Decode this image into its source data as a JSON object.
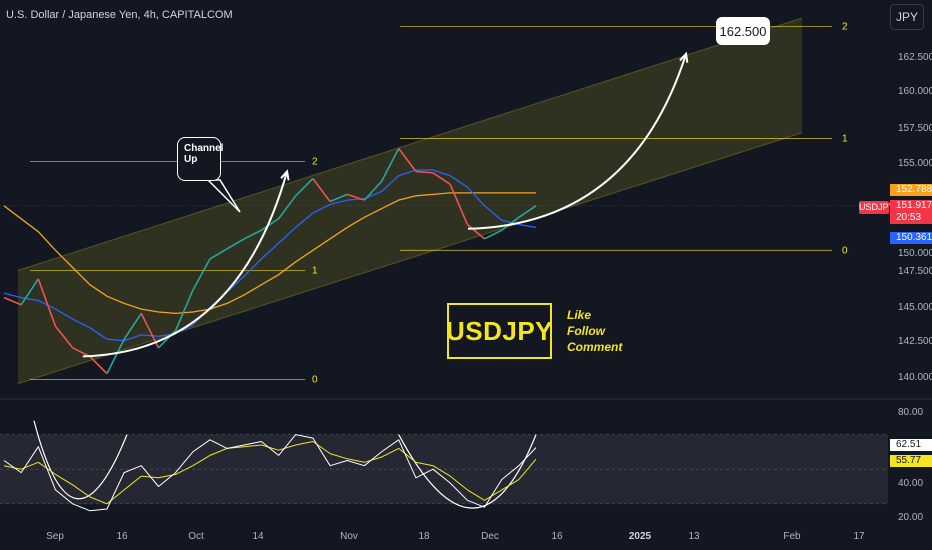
{
  "header": {
    "title": "U.S. Dollar / Japanese Yen, 4h, CAPITALCOM"
  },
  "currency_button": "JPY",
  "price_tags": {
    "ma_orange": "152.788",
    "ticker": "USDJPY",
    "last_price": "151.917",
    "countdown": "20:53",
    "ma_blue": "150.361",
    "rsi_white": "62.51",
    "rsi_yellow": "55.77"
  },
  "annotations": {
    "target": "162.500",
    "callout": "Channel Up",
    "symbol_box": "USDJPY",
    "cta": [
      "Like",
      "Follow",
      "Comment"
    ]
  },
  "colors": {
    "background": "#131722",
    "channel_fill": "#f5e51f",
    "ma_orange": "#f7a21b",
    "ma_blue": "#2962ff",
    "up": "#26a69a",
    "down": "#ef5350",
    "rsi_white": "#ffffff",
    "rsi_yellow": "#f5e51f",
    "last_price": "#f23645"
  },
  "chart_data": [
    {
      "type": "line",
      "title": "U.S. Dollar / Japanese Yen, 4h, CAPITALCOM",
      "y_ticks": [
        "162.500",
        "160.000",
        "157.500",
        "155.000",
        "152.500",
        "150.000",
        "147.500",
        "145.000",
        "142.500",
        "140.000"
      ],
      "x_ticks": [
        "Sep",
        "16",
        "Oct",
        "14",
        "Nov",
        "18",
        "Dec",
        "16",
        "2025",
        "13",
        "Feb",
        "17"
      ],
      "ylim": [
        138.5,
        165.0
      ],
      "series": [
        {
          "name": "",
          "role": "close",
          "x": [
            "Aug 26",
            "Aug 29",
            "Sep 2",
            "Sep 5",
            "Sep 9",
            "Sep 12",
            "Sep 16",
            "Sep 19",
            "Sep 23",
            "Sep 26",
            "Sep 30",
            "Oct 3",
            "Oct 7",
            "Oct 10",
            "Oct 14",
            "Oct 17",
            "Oct 21",
            "Oct 24",
            "Oct 28",
            "Oct 31",
            "Nov 4",
            "Nov 7",
            "Nov 11",
            "Nov 14",
            "Nov 18",
            "Nov 21",
            "Nov 25",
            "Nov 28",
            "Dec 2",
            "Dec 5",
            "Dec 9",
            "Dec 12"
          ],
          "values": [
            145.5,
            145.0,
            146.8,
            143.5,
            142.0,
            141.4,
            140.2,
            142.6,
            144.4,
            142.0,
            143.2,
            146.0,
            148.2,
            148.9,
            149.6,
            150.2,
            151.0,
            152.6,
            153.8,
            152.2,
            152.7,
            152.3,
            153.6,
            155.9,
            154.3,
            154.2,
            153.4,
            150.6,
            149.6,
            150.2,
            151.1,
            151.9
          ]
        },
        {
          "name": "",
          "role": "ma_blue",
          "values": [
            145.8,
            145.5,
            145.3,
            144.7,
            144.0,
            143.4,
            142.6,
            142.5,
            142.9,
            142.8,
            143.0,
            143.6,
            144.8,
            145.9,
            147.0,
            148.2,
            149.3,
            150.4,
            151.4,
            152.0,
            152.3,
            152.4,
            152.9,
            154.0,
            154.4,
            154.4,
            154.0,
            153.2,
            151.9,
            150.9,
            150.6,
            150.4
          ]
        },
        {
          "name": "",
          "role": "ma_orange",
          "values": [
            151.9,
            151.0,
            150.1,
            148.8,
            147.6,
            146.4,
            145.6,
            145.1,
            144.7,
            144.5,
            144.4,
            144.5,
            144.7,
            145.1,
            145.7,
            146.4,
            147.1,
            148.0,
            148.8,
            149.6,
            150.4,
            151.1,
            151.7,
            152.3,
            152.6,
            152.7,
            152.8,
            152.8,
            152.8,
            152.8,
            152.8,
            152.8
          ]
        }
      ],
      "channel": {
        "upper": [
          {
            "x": "Aug 29",
            "y": 147.4
          },
          {
            "x": "Feb 14",
            "y": 165.0
          }
        ],
        "lower": [
          {
            "x": "Aug 29",
            "y": 139.5
          },
          {
            "x": "Feb 14",
            "y": 157.0
          }
        ]
      },
      "fib_levels_first": [
        {
          "label": "2",
          "y": 155.0
        },
        {
          "label": "1",
          "y": 147.4
        },
        {
          "label": "0",
          "y": 139.8
        }
      ],
      "fib_levels_second": [
        {
          "label": "2",
          "y": 164.4
        },
        {
          "label": "1",
          "y": 156.6
        },
        {
          "label": "0",
          "y": 148.8
        }
      ],
      "horizontal_lines": [
        {
          "y": 151.917,
          "label": "151.917"
        }
      ],
      "arrows": [
        {
          "from": {
            "x": "Sep 12",
            "y": 141.4
          },
          "to": {
            "x": "Oct 26",
            "y": 154.3
          }
        },
        {
          "from": {
            "x": "Dec 4",
            "y": 150.3
          },
          "to": {
            "x": "Jan 20",
            "y": 162.5
          }
        }
      ],
      "grid": false
    },
    {
      "type": "line",
      "title": "",
      "y_ticks": [
        "80.00",
        "40.00",
        "20.00"
      ],
      "ylim": [
        16,
        90
      ],
      "band": [
        30,
        70
      ],
      "series": [
        {
          "name": "",
          "role": "rsi",
          "values": [
            55,
            48,
            63,
            38,
            30,
            26,
            27,
            48,
            52,
            40,
            48,
            60,
            67,
            62,
            64,
            66,
            58,
            70,
            68,
            52,
            55,
            52,
            60,
            67,
            45,
            50,
            42,
            32,
            28,
            44,
            52,
            62.51
          ]
        },
        {
          "name": "",
          "role": "rsi_ma",
          "values": [
            52,
            50,
            54,
            47,
            41,
            34,
            30,
            38,
            46,
            45,
            47,
            52,
            58,
            62,
            63,
            64,
            61,
            64,
            66,
            59,
            56,
            54,
            57,
            62,
            54,
            52,
            46,
            38,
            32,
            38,
            44,
            55.77
          ]
        }
      ]
    }
  ]
}
